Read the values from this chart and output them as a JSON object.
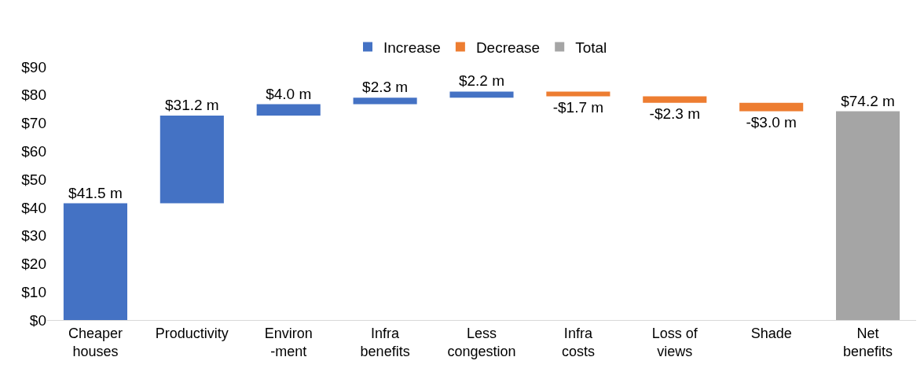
{
  "chart_data": {
    "type": "bar",
    "categories": [
      "Cheaper houses",
      "Productivity",
      "Environ -ment",
      "Infra benefits",
      "Less congestion",
      "Infra costs",
      "Loss of views",
      "Shade",
      "Net benefits"
    ],
    "series": [
      {
        "name": "Increase",
        "color": "#4472c4",
        "base": [
          0,
          41.5,
          72.7,
          76.7,
          79.0,
          null,
          null,
          null,
          null
        ],
        "values": [
          41.5,
          31.2,
          4.0,
          2.3,
          2.2,
          null,
          null,
          null,
          null
        ],
        "value_labels": [
          "$41.5 m",
          "$31.2 m",
          "$4.0 m",
          "$2.3 m",
          "$2.2 m",
          null,
          null,
          null,
          null
        ]
      },
      {
        "name": "Decrease",
        "color": "#ed7d31",
        "base": [
          null,
          null,
          null,
          null,
          null,
          81.2,
          79.5,
          77.2,
          null
        ],
        "values": [
          null,
          null,
          null,
          null,
          null,
          -1.7,
          -2.3,
          -3.0,
          null
        ],
        "value_labels": [
          null,
          null,
          null,
          null,
          null,
          "-$1.7 m",
          "-$2.3 m",
          "-$3.0 m",
          null
        ]
      },
      {
        "name": "Total",
        "color": "#a5a5a5",
        "base": [
          null,
          null,
          null,
          null,
          null,
          null,
          null,
          null,
          0
        ],
        "values": [
          null,
          null,
          null,
          null,
          null,
          null,
          null,
          null,
          74.2
        ],
        "value_labels": [
          null,
          null,
          null,
          null,
          null,
          null,
          null,
          null,
          "$74.2 m"
        ]
      }
    ],
    "ylim": [
      0,
      90
    ],
    "yticks": [
      {
        "value": 0,
        "label": "$0"
      },
      {
        "value": 10,
        "label": "$10"
      },
      {
        "value": 20,
        "label": "$20"
      },
      {
        "value": 30,
        "label": "$30"
      },
      {
        "value": 40,
        "label": "$40"
      },
      {
        "value": 50,
        "label": "$50"
      },
      {
        "value": 60,
        "label": "$60"
      },
      {
        "value": 70,
        "label": "$70"
      },
      {
        "value": 80,
        "label": "$80"
      },
      {
        "value": 90,
        "label": "$90"
      }
    ],
    "grid": false,
    "legend": "top"
  }
}
